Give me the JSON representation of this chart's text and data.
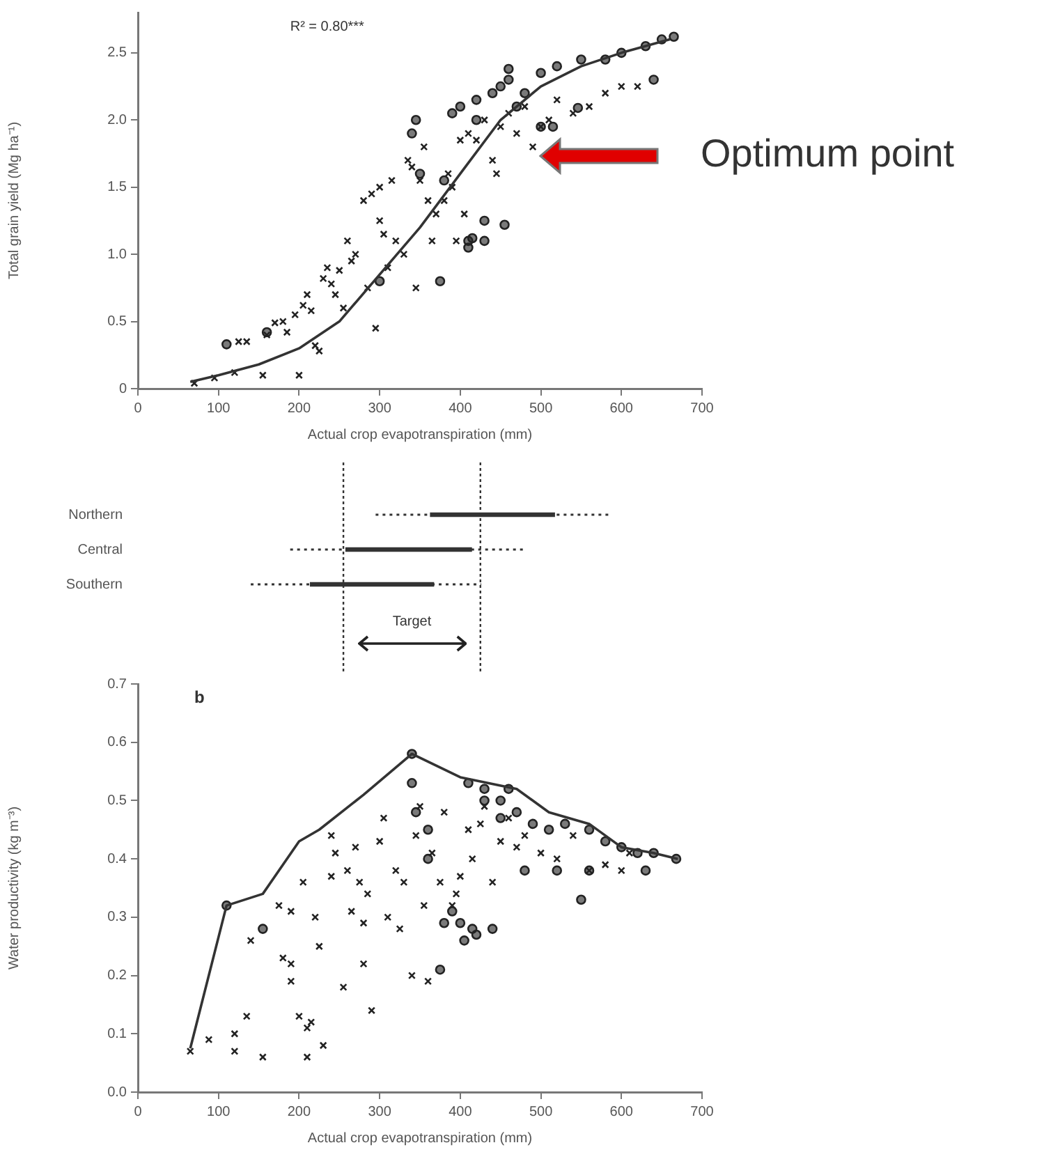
{
  "chart_data": [
    {
      "type": "scatter",
      "xlabel": "Actual crop evapotranspiration (mm)",
      "ylabel": "Total grain yield (Mg ha⁻¹)",
      "xlim": [
        0,
        700
      ],
      "xticks": [
        0,
        100,
        200,
        300,
        400,
        500,
        600,
        700
      ],
      "ylim": [
        0,
        2.8
      ],
      "yticks": [
        0,
        {
          "value": 0.5,
          "label": "0.5"
        },
        {
          "value": 1,
          "label": "1.0"
        },
        {
          "value": 1.5,
          "label": "1.5"
        },
        {
          "value": 2,
          "label": "2.0"
        },
        {
          "value": 2.5,
          "label": "2.5"
        }
      ],
      "annotations": [
        "R² = 0.80***",
        "Optimum point"
      ],
      "series": [
        {
          "type": "scatter",
          "marker": "cross",
          "color": "#222222",
          "x": [
            70,
            95,
            120,
            125,
            135,
            155,
            160,
            170,
            180,
            185,
            195,
            200,
            205,
            210,
            215,
            220,
            225,
            230,
            235,
            240,
            245,
            250,
            255,
            260,
            265,
            270,
            280,
            285,
            290,
            295,
            300,
            300,
            305,
            310,
            315,
            320,
            330,
            335,
            340,
            345,
            350,
            355,
            360,
            365,
            370,
            380,
            385,
            390,
            395,
            400,
            405,
            410,
            420,
            430,
            440,
            445,
            450,
            460,
            470,
            480,
            490,
            500,
            510,
            520,
            540,
            560,
            580,
            600,
            620
          ],
          "values": [
            0.04,
            0.08,
            0.12,
            0.35,
            0.35,
            0.1,
            0.4,
            0.49,
            0.5,
            0.42,
            0.55,
            0.1,
            0.62,
            0.7,
            0.58,
            0.32,
            0.28,
            0.82,
            0.9,
            0.78,
            0.7,
            0.88,
            0.6,
            1.1,
            0.95,
            1.0,
            1.4,
            0.75,
            1.45,
            0.45,
            1.25,
            1.5,
            1.15,
            0.9,
            1.55,
            1.1,
            1.0,
            1.7,
            1.65,
            0.75,
            1.55,
            1.8,
            1.4,
            1.1,
            1.3,
            1.4,
            1.6,
            1.5,
            1.1,
            1.85,
            1.3,
            1.9,
            1.85,
            2.0,
            1.7,
            1.6,
            1.95,
            2.05,
            1.9,
            2.1,
            1.8,
            1.95,
            2.0,
            2.15,
            2.05,
            2.1,
            2.2,
            2.25,
            2.25
          ]
        },
        {
          "type": "scatter",
          "marker": "circle",
          "color": "#222222",
          "x": [
            110,
            160,
            350,
            375,
            380,
            410,
            415,
            420,
            430,
            455,
            460,
            470,
            500,
            515,
            546,
            640,
            300,
            340,
            345,
            390,
            400,
            410,
            420,
            430,
            440,
            450,
            460,
            480,
            500,
            520,
            550,
            580,
            600,
            630,
            650,
            665
          ],
          "values": [
            0.33,
            0.42,
            1.6,
            0.8,
            1.55,
            1.05,
            1.12,
            2.0,
            1.25,
            1.22,
            2.38,
            2.1,
            1.95,
            1.95,
            2.09,
            2.3,
            0.8,
            1.9,
            2.0,
            2.05,
            2.1,
            1.1,
            2.15,
            1.1,
            2.2,
            2.25,
            2.3,
            2.2,
            2.35,
            2.4,
            2.45,
            2.45,
            2.5,
            2.55,
            2.6,
            2.62
          ]
        },
        {
          "type": "line",
          "marker": "none",
          "color": "#333333",
          "x": [
            65,
            100,
            150,
            200,
            250,
            300,
            350,
            400,
            450,
            500,
            550,
            600,
            660
          ],
          "values": [
            0.05,
            0.1,
            0.18,
            0.3,
            0.5,
            0.85,
            1.2,
            1.6,
            2.0,
            2.25,
            2.4,
            2.5,
            2.6
          ]
        }
      ]
    },
    {
      "type": "bar",
      "orientation": "horizontal",
      "categories": [
        "Northern",
        "Central",
        "Southern"
      ],
      "base": [
        363,
        258,
        214
      ],
      "values": [
        154,
        156,
        153
      ],
      "errors": [
        [
          295,
          584
        ],
        [
          189,
          480
        ],
        [
          140,
          426
        ]
      ],
      "color": "#333333",
      "xlim": [
        0,
        700
      ],
      "tick_labels": "y",
      "annotations": [
        "Target"
      ],
      "ref_lines": [
        {
          "axis": "x",
          "value": 255,
          "line_style": "dotted"
        },
        {
          "axis": "x",
          "value": 425,
          "line_style": "dotted"
        }
      ]
    },
    {
      "type": "scatter",
      "xlabel": "Actual crop evapotranspiration (mm)",
      "ylabel": "Water productivity (kg m⁻³)",
      "xlim": [
        0,
        700
      ],
      "xticks": [
        0,
        100,
        200,
        300,
        400,
        500,
        600,
        700
      ],
      "ylim": [
        0,
        0.7
      ],
      "yticks": [
        {
          "value": 0,
          "label": "0.0"
        },
        0.1,
        0.2,
        0.3,
        0.4,
        0.5,
        0.6,
        0.7
      ],
      "annotations": [
        "b"
      ],
      "series": [
        {
          "type": "scatter",
          "marker": "cross",
          "color": "#222222",
          "x": [
            65,
            88,
            120,
            120,
            135,
            155,
            175,
            140,
            180,
            190,
            190,
            190,
            200,
            205,
            210,
            210,
            215,
            220,
            225,
            230,
            240,
            240,
            245,
            255,
            260,
            265,
            270,
            275,
            280,
            280,
            285,
            290,
            300,
            305,
            310,
            320,
            325,
            330,
            340,
            345,
            350,
            355,
            360,
            365,
            375,
            380,
            390,
            395,
            400,
            410,
            415,
            425,
            430,
            440,
            450,
            460,
            470,
            480,
            500,
            520,
            540,
            560,
            580,
            600,
            610
          ],
          "values": [
            0.07,
            0.09,
            0.1,
            0.07,
            0.13,
            0.06,
            0.32,
            0.26,
            0.23,
            0.31,
            0.22,
            0.19,
            0.13,
            0.36,
            0.11,
            0.06,
            0.12,
            0.3,
            0.25,
            0.08,
            0.44,
            0.37,
            0.41,
            0.18,
            0.38,
            0.31,
            0.42,
            0.36,
            0.29,
            0.22,
            0.34,
            0.14,
            0.43,
            0.47,
            0.3,
            0.38,
            0.28,
            0.36,
            0.2,
            0.44,
            0.49,
            0.32,
            0.19,
            0.41,
            0.36,
            0.48,
            0.32,
            0.34,
            0.37,
            0.45,
            0.4,
            0.46,
            0.49,
            0.36,
            0.43,
            0.47,
            0.42,
            0.44,
            0.41,
            0.4,
            0.44,
            0.38,
            0.39,
            0.38,
            0.41
          ]
        },
        {
          "type": "scatter",
          "marker": "circle",
          "color": "#222222",
          "x": [
            110,
            155,
            340,
            345,
            360,
            375,
            400,
            405,
            415,
            440,
            460,
            430,
            450,
            480,
            520,
            560,
            630,
            640,
            340,
            360,
            380,
            390,
            420,
            410,
            430,
            450,
            470,
            490,
            510,
            530,
            550,
            560,
            580,
            600,
            620,
            668
          ],
          "values": [
            0.32,
            0.28,
            0.53,
            0.48,
            0.45,
            0.21,
            0.29,
            0.26,
            0.28,
            0.28,
            0.52,
            0.5,
            0.47,
            0.38,
            0.38,
            0.38,
            0.38,
            0.41,
            0.58,
            0.4,
            0.29,
            0.31,
            0.27,
            0.53,
            0.52,
            0.5,
            0.48,
            0.46,
            0.45,
            0.46,
            0.33,
            0.45,
            0.43,
            0.42,
            0.41,
            0.4
          ]
        },
        {
          "type": "line",
          "marker": "none",
          "color": "#333333",
          "x": [
            65,
            110,
            155,
            200,
            225,
            280,
            340,
            400,
            470,
            510,
            560,
            600,
            640,
            670
          ],
          "values": [
            0.075,
            0.32,
            0.34,
            0.43,
            0.45,
            0.51,
            0.58,
            0.54,
            0.52,
            0.48,
            0.46,
            0.42,
            0.41,
            0.4
          ]
        }
      ]
    }
  ]
}
